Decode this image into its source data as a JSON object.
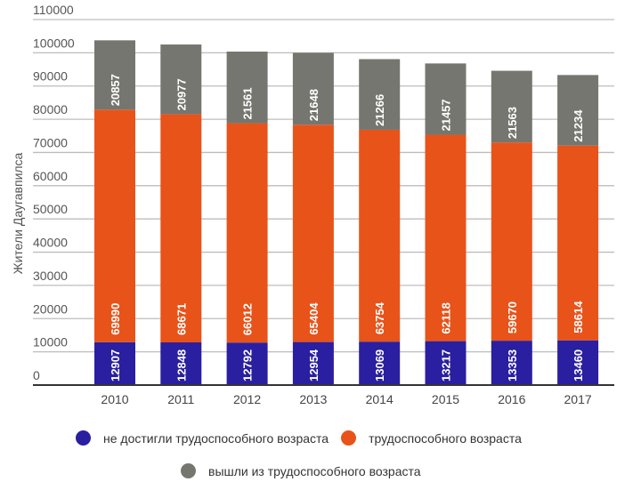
{
  "chart_data": {
    "type": "bar",
    "stacked": true,
    "title": "",
    "xlabel": "",
    "ylabel": "Жители Даугавпилса",
    "categories": [
      "2010",
      "2011",
      "2012",
      "2013",
      "2014",
      "2015",
      "2016",
      "2017"
    ],
    "ylim": [
      0,
      110000
    ],
    "yticks": [
      0,
      10000,
      20000,
      30000,
      40000,
      50000,
      60000,
      70000,
      80000,
      90000,
      100000,
      110000
    ],
    "grid": true,
    "legend_position": "bottom",
    "series": [
      {
        "name": "не достигли трудоспособного возраста",
        "color": "#2a1fa0",
        "values": [
          12907,
          12848,
          12792,
          12954,
          13069,
          13217,
          13353,
          13460
        ]
      },
      {
        "name": "трудоспособного возраста",
        "color": "#e8531a",
        "values": [
          69990,
          68671,
          66012,
          65404,
          63754,
          62118,
          59670,
          58614
        ]
      },
      {
        "name": "вышли из трудоспособного возраста",
        "color": "#767670",
        "values": [
          20857,
          20977,
          21561,
          21648,
          21266,
          21457,
          21563,
          21234
        ]
      }
    ]
  }
}
